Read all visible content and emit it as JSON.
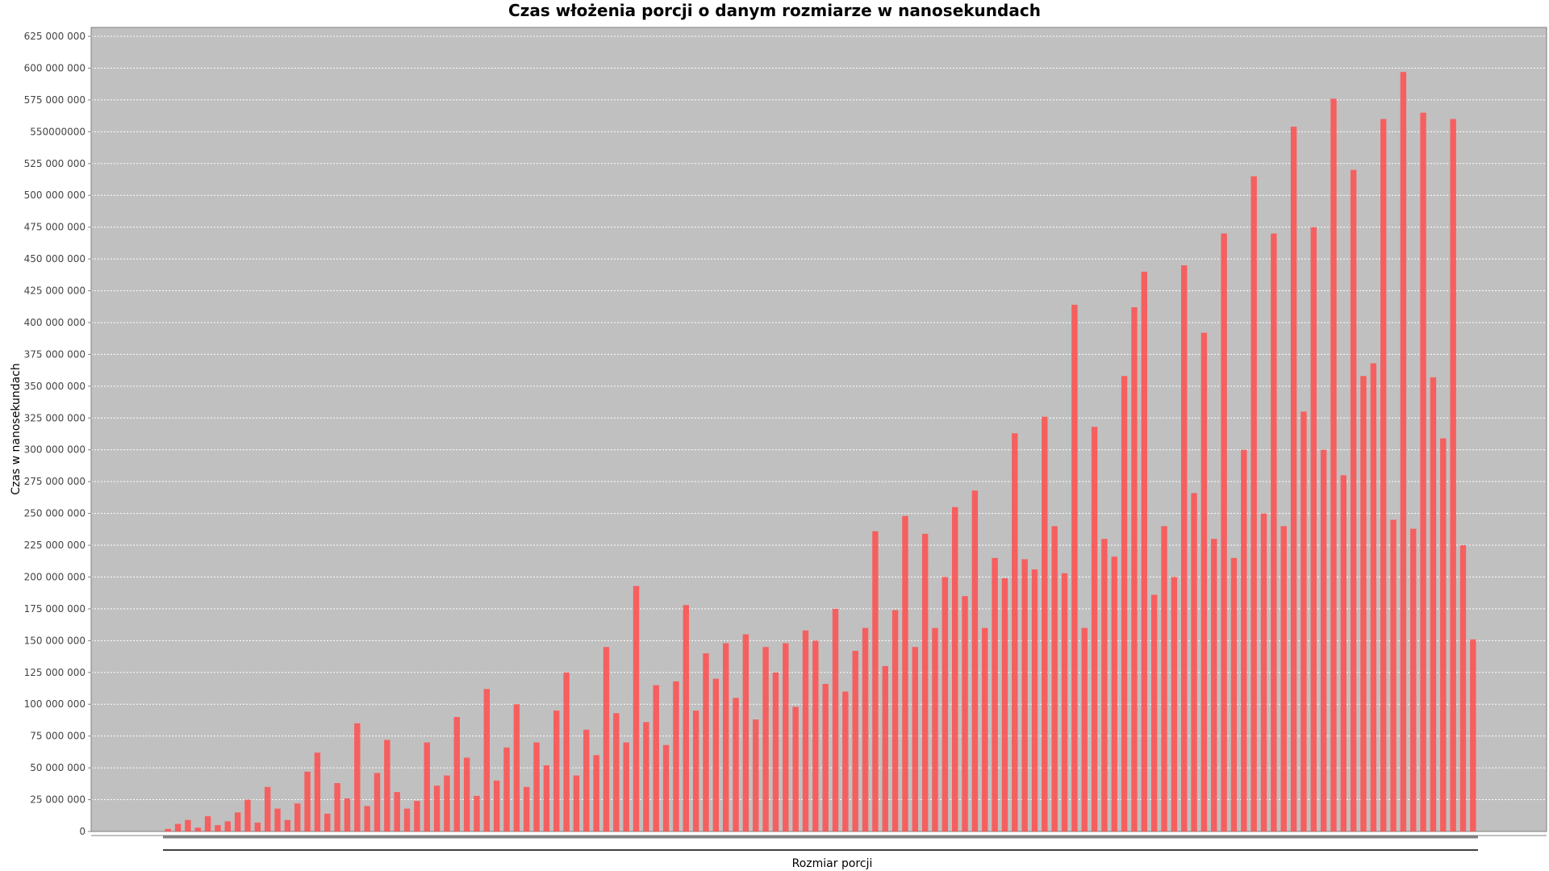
{
  "chart_data": {
    "type": "bar",
    "title": "Czas włożenia porcji o danym rozmiarze w nanosekundach",
    "xlabel": "Rozmiar porcji",
    "ylabel": "Czas w nanosekundach",
    "ylim": [
      0,
      632000000
    ],
    "yticks": [
      0,
      25000000,
      50000000,
      75000000,
      100000000,
      125000000,
      150000000,
      175000000,
      200000000,
      225000000,
      250000000,
      275000000,
      300000000,
      325000000,
      350000000,
      375000000,
      400000000,
      425000000,
      450000000,
      475000000,
      500000000,
      525000000,
      550000000,
      575000000,
      600000000,
      625000000
    ],
    "ytick_labels": [
      "0",
      "25 000 000",
      "50 000 000",
      "75 000 000",
      "100 000 000",
      "125 000 000",
      "150 000 000",
      "175 000 000",
      "200 000 000",
      "225 000 000",
      "250 000 000",
      "275 000 000",
      "300 000 000",
      "325 000 000",
      "350 000 000",
      "375 000 000",
      "400 000 000",
      "425 000 000",
      "450 000 000",
      "475 000 000",
      "500 000 000",
      "525 000 000",
      "550000000",
      "575 000 000",
      "600 000 000",
      "625 000 000"
    ],
    "grid": true,
    "plot_background": "#c0c0c0",
    "bar_color": "#ff4d4d",
    "series": [
      {
        "values": [
          2000000,
          6000000,
          9000000,
          3000000,
          12000000,
          5000000,
          8000000,
          15000000,
          25000000,
          7000000,
          35000000,
          18000000,
          9000000,
          22000000,
          47000000,
          62000000,
          14000000,
          38000000,
          26000000,
          85000000,
          20000000,
          46000000,
          72000000,
          31000000,
          18000000,
          24000000,
          70000000,
          36000000,
          44000000,
          90000000,
          58000000,
          28000000,
          112000000,
          40000000,
          66000000,
          100000000,
          35000000,
          70000000,
          52000000,
          95000000,
          125000000,
          44000000,
          80000000,
          60000000,
          145000000,
          93000000,
          70000000,
          193000000,
          86000000,
          115000000,
          68000000,
          118000000,
          178000000,
          95000000,
          140000000,
          120000000,
          148000000,
          105000000,
          155000000,
          88000000,
          145000000,
          125000000,
          148000000,
          98000000,
          158000000,
          150000000,
          116000000,
          175000000,
          110000000,
          142000000,
          160000000,
          236000000,
          130000000,
          174000000,
          248000000,
          145000000,
          234000000,
          160000000,
          200000000,
          255000000,
          185000000,
          268000000,
          160000000,
          215000000,
          199000000,
          313000000,
          214000000,
          206000000,
          326000000,
          240000000,
          203000000,
          414000000,
          160000000,
          318000000,
          230000000,
          216000000,
          358000000,
          412000000,
          440000000,
          186000000,
          240000000,
          200000000,
          445000000,
          266000000,
          392000000,
          230000000,
          470000000,
          215000000,
          300000000,
          515000000,
          250000000,
          470000000,
          240000000,
          554000000,
          330000000,
          475000000,
          300000000,
          576000000,
          280000000,
          520000000,
          358000000,
          368000000,
          560000000,
          245000000,
          597000000,
          238000000,
          565000000,
          357000000,
          309000000,
          560000000,
          225000000,
          151000000
        ]
      }
    ]
  }
}
